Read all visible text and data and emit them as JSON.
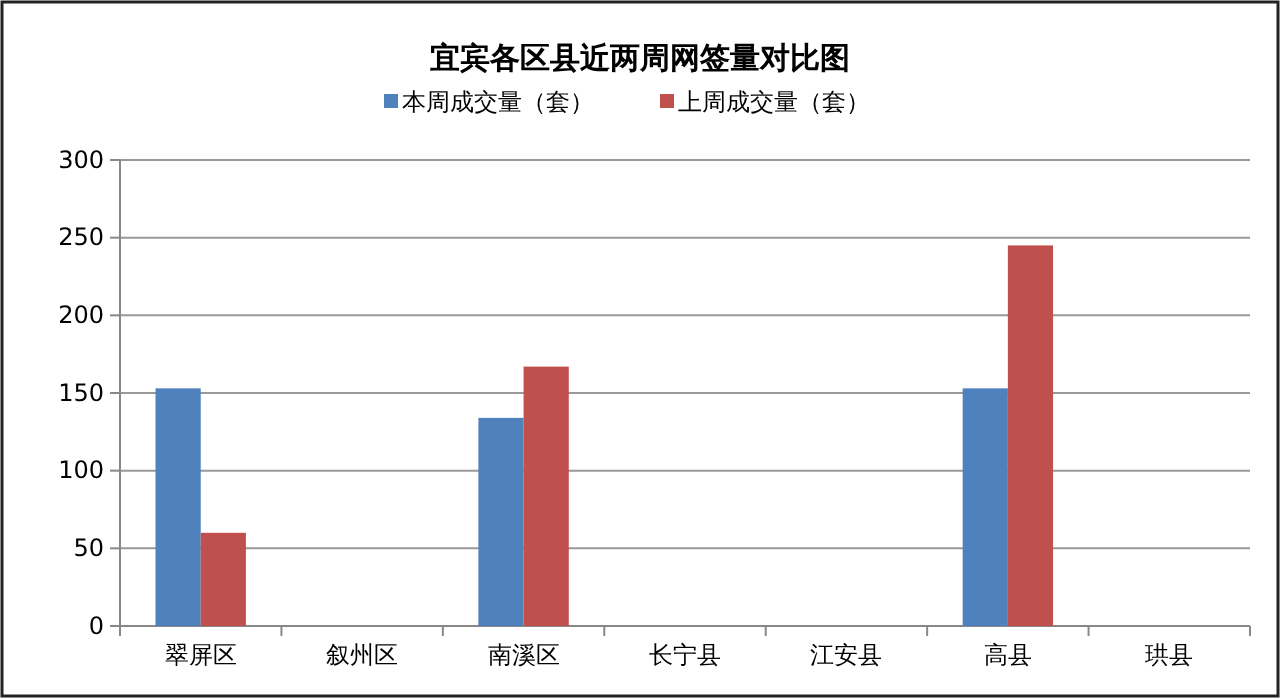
{
  "chart_data": {
    "type": "bar",
    "title": "宜宾各区县近两周网签量对比图",
    "categories": [
      "翠屏区",
      "叙州区",
      "南溪区",
      "长宁县",
      "江安县",
      "高县",
      "珙县"
    ],
    "series": [
      {
        "name": "本周成交量（套）",
        "color": "#4f81bd",
        "values": [
          153,
          0,
          134,
          0,
          0,
          153,
          0
        ]
      },
      {
        "name": "上周成交量（套）",
        "color": "#c0504d",
        "values": [
          60,
          0,
          167,
          0,
          0,
          245,
          0
        ]
      }
    ],
    "ylim": [
      0,
      300
    ],
    "yticks": [
      0,
      50,
      100,
      150,
      200,
      250,
      300
    ],
    "grid": "y",
    "legend": "top"
  }
}
